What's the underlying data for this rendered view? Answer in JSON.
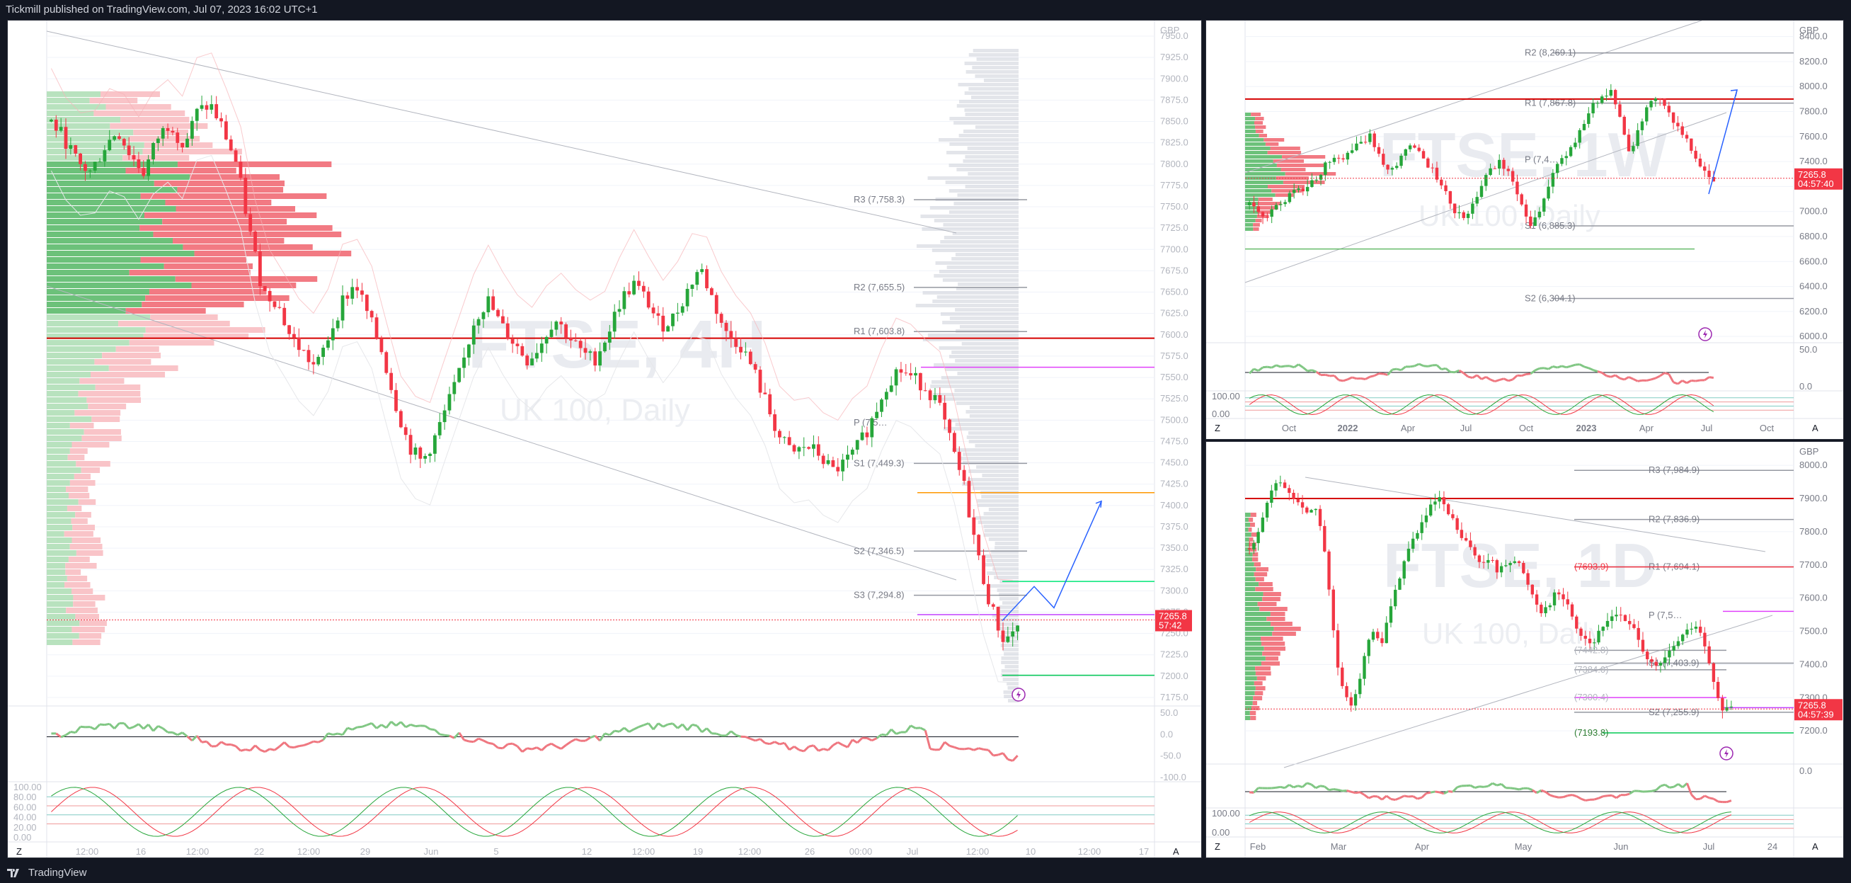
{
  "header": {
    "published_text": "Tickmill published on TradingView.com, Jul 07, 2023 16:02 UTC+1"
  },
  "footer": {
    "brand": "TradingView"
  },
  "colors": {
    "up": "#26a63a",
    "down": "#f23645",
    "resistance": "#d50000",
    "grid": "#f0f3fa",
    "background": "#ffffff"
  },
  "charts": {
    "main": {
      "watermark_symbol": "FTSE, 4H",
      "watermark_desc": "UK 100, Daily",
      "currency": "GBP",
      "price_axis": [
        "7950.0",
        "7925.0",
        "7900.0",
        "7875.0",
        "7850.0",
        "7825.0",
        "7800.0",
        "7775.0",
        "7750.0",
        "7725.0",
        "7700.0",
        "7675.0",
        "7650.0",
        "7625.0",
        "7600.0",
        "7575.0",
        "7550.0",
        "7525.0",
        "7500.0",
        "7475.0",
        "7450.0",
        "7425.0",
        "7400.0",
        "7375.0",
        "7350.0",
        "7325.0",
        "7300.0",
        "7275.0",
        "7250.0",
        "7225.0",
        "7200.0",
        "7175.0"
      ],
      "time_axis": [
        "12:00",
        "16",
        "12:00",
        "22",
        "12:00",
        "29",
        "Jun",
        "5",
        "12",
        "12:00",
        "19",
        "12:00",
        "26",
        "00:00",
        "Jul",
        "12:00",
        "10",
        "12:00",
        "17"
      ],
      "pivot_labels": [
        "R3 (7,758.3)",
        "R2 (7,655.5)",
        "R1 (7,603.8)",
        "P (7,5…",
        "S1 (7,449.3)",
        "S2 (7,346.5)",
        "S3 (7,294.8)"
      ],
      "last_price": "7265.8",
      "countdown": "57:42",
      "osc1_axis": [
        "50.0",
        "0.0",
        "-50.0",
        "-100.0"
      ],
      "osc2_axis": [
        "100.00",
        "80.00",
        "60.00",
        "40.00",
        "20.00",
        "0.00"
      ],
      "corner_left": "Z",
      "corner_right": "A"
    },
    "weekly": {
      "watermark_symbol": "FTSE, 1W",
      "watermark_desc": "UK 100, Daily",
      "currency": "GBP",
      "price_axis": [
        "8400.0",
        "8200.0",
        "8000.0",
        "7800.0",
        "7600.0",
        "7400.0",
        "7200.0",
        "7000.0",
        "6800.0",
        "6600.0",
        "6400.0",
        "6200.0",
        "6000.0"
      ],
      "time_axis": [
        "Oct",
        "2022",
        "Apr",
        "Jul",
        "Oct",
        "2023",
        "Apr",
        "Jul",
        "Oct"
      ],
      "pivot_labels": [
        "R2 (8,269.1)",
        "R1 (7,867.8)",
        "P (7,4…",
        "S1 (6,885.3)",
        "S2 (6,304.1)"
      ],
      "last_price": "7265.8",
      "countdown": "04:57:40",
      "osc1_axis": [
        "50.0",
        "0.0"
      ],
      "osc2_axis": [
        "100.00",
        "0.00"
      ],
      "corner_left": "Z",
      "corner_right": "A"
    },
    "daily": {
      "watermark_symbol": "FTSE, 1D",
      "watermark_desc": "UK 100, Daily",
      "currency": "GBP",
      "price_axis": [
        "8000.0",
        "7900.0",
        "7800.0",
        "7700.0",
        "7600.0",
        "7500.0",
        "7400.0",
        "7300.0",
        "7200.0"
      ],
      "time_axis": [
        "Feb",
        "Mar",
        "Apr",
        "May",
        "Jun",
        "Jul",
        "24"
      ],
      "pivot_labels": [
        "R3 (7,984.9)",
        "R2 (7,836.9)",
        "R1 (7,694.1)",
        "P (7,5…",
        "S1 (7,403.9)",
        "S2 (7,255.9)"
      ],
      "level_labels": [
        "(7693.9)",
        "(7442.8)",
        "(7384.0)",
        "(7300.4)",
        "(7193.8)"
      ],
      "last_price": "7265.8",
      "countdown": "04:57:39",
      "osc1_axis": [
        "0.0"
      ],
      "osc2_axis": [
        "100.00",
        "0.00"
      ],
      "corner_left": "Z",
      "corner_right": "A"
    }
  },
  "chart_data": [
    {
      "type": "candlestick",
      "title": "FTSE, 4H",
      "subtitle": "UK 100, Daily",
      "currency": "GBP",
      "ylim": [
        7165,
        7960
      ],
      "close_path": [
        7850,
        7830,
        7800,
        7790,
        7820,
        7840,
        7810,
        7790,
        7830,
        7850,
        7820,
        7860,
        7870,
        7840,
        7800,
        7720,
        7650,
        7640,
        7600,
        7580,
        7560,
        7600,
        7640,
        7660,
        7620,
        7580,
        7520,
        7470,
        7450,
        7480,
        7520,
        7560,
        7620,
        7640,
        7610,
        7590,
        7570,
        7590,
        7620,
        7600,
        7580,
        7570,
        7600,
        7640,
        7660,
        7640,
        7610,
        7620,
        7650,
        7680,
        7640,
        7600,
        7590,
        7560,
        7520,
        7480,
        7460,
        7470,
        7460,
        7440,
        7450,
        7470,
        7500,
        7540,
        7560,
        7550,
        7540,
        7520,
        7470,
        7420,
        7340,
        7280,
        7240,
        7260
      ],
      "pivots": {
        "R3": 7758.3,
        "R2": 7655.5,
        "R1": 7603.8,
        "S1": 7449.3,
        "S2": 7346.5,
        "S3": 7294.8
      },
      "resistance_line": 7596,
      "last_price": 7265.8,
      "projection": [
        [
          7265,
          7265
        ],
        [
          7305,
          7305
        ],
        [
          7280,
          7280
        ],
        [
          7405,
          7405
        ]
      ]
    },
    {
      "type": "candlestick",
      "title": "FTSE, 1W",
      "subtitle": "UK 100, Daily",
      "currency": "GBP",
      "ylim": [
        5950,
        8500
      ],
      "close_path": [
        7050,
        7000,
        6950,
        7050,
        7100,
        7200,
        7150,
        7250,
        7350,
        7450,
        7400,
        7500,
        7550,
        7600,
        7450,
        7300,
        7400,
        7500,
        7550,
        7400,
        7300,
        7200,
        7000,
        6950,
        7050,
        7200,
        7350,
        7400,
        7300,
        7100,
        6900,
        6950,
        7150,
        7350,
        7450,
        7550,
        7700,
        7850,
        7900,
        7950,
        7750,
        7450,
        7700,
        7850,
        7900,
        7800,
        7700,
        7600,
        7450,
        7300,
        7270
      ],
      "pivots": {
        "R2": 8269.1,
        "R1": 7867.8,
        "S1": 6885.3,
        "S2": 6304.1
      },
      "resistance_line": 7900,
      "last_price": 7265.8
    },
    {
      "type": "candlestick",
      "title": "FTSE, 1D",
      "subtitle": "UK 100, Daily",
      "currency": "GBP",
      "ylim": [
        7100,
        8060
      ],
      "close_path": [
        7750,
        7790,
        7860,
        7920,
        7950,
        7930,
        7900,
        7880,
        7860,
        7870,
        7800,
        7600,
        7400,
        7300,
        7280,
        7350,
        7450,
        7500,
        7450,
        7550,
        7620,
        7700,
        7760,
        7800,
        7840,
        7880,
        7900,
        7860,
        7830,
        7780,
        7760,
        7730,
        7700,
        7720,
        7680,
        7700,
        7720,
        7700,
        7650,
        7600,
        7560,
        7580,
        7620,
        7600,
        7560,
        7500,
        7480,
        7460,
        7500,
        7530,
        7560,
        7540,
        7520,
        7500,
        7440,
        7400,
        7390,
        7420,
        7450,
        7480,
        7500,
        7520,
        7480,
        7400,
        7300,
        7260,
        7265
      ],
      "pivots": {
        "R3": 7984.9,
        "R2": 7836.9,
        "R1": 7694.1,
        "S1": 7403.9,
        "S2": 7255.9
      },
      "levels": [
        7693.9,
        7442.8,
        7384.0,
        7300.4,
        7193.8
      ],
      "resistance_line": 7900,
      "last_price": 7265.8
    }
  ]
}
